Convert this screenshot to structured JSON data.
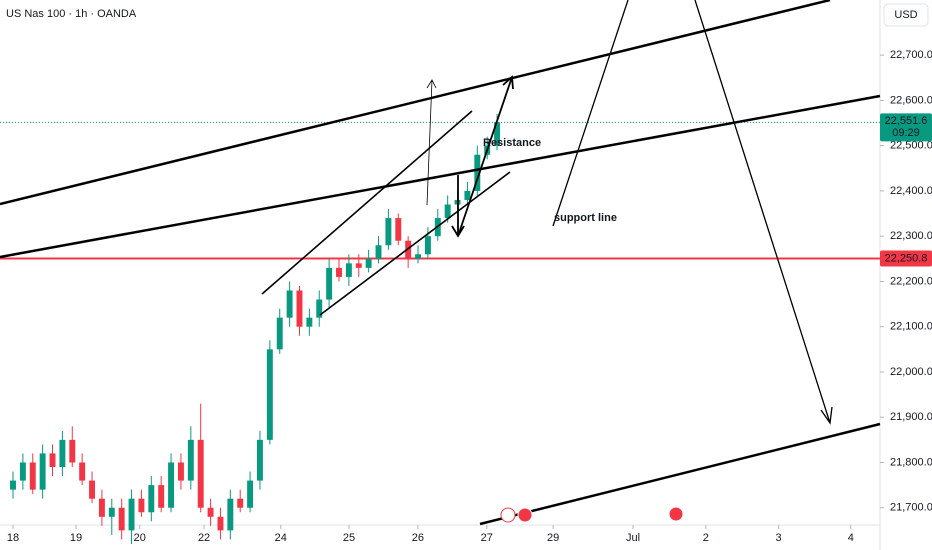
{
  "chart_data": {
    "type": "candlestick",
    "title": "US Nas 100 · 1h · OANDA",
    "currency": "USD",
    "x": [
      0,
      0.152,
      0.304,
      0.456,
      0.608,
      0.76,
      0.912,
      1.064,
      1.216,
      1.368,
      1.52,
      1.672,
      1.824,
      1.976,
      2.128,
      2.28,
      2.432,
      2.584,
      2.736,
      2.888,
      3.04,
      3.192,
      3.344,
      3.496,
      3.648,
      3.8,
      3.952,
      4.104,
      4.256,
      4.408,
      4.56,
      4.712,
      4.864,
      5.016,
      5.168,
      5.32,
      5.472,
      5.624,
      5.776,
      5.928,
      6.08,
      6.232,
      6.384,
      6.536,
      6.688,
      6.84,
      6.992,
      7.144,
      7.296,
      7.448
    ],
    "open": [
      21740,
      21760,
      21800,
      21740,
      21820,
      21790,
      21850,
      21800,
      21760,
      21720,
      21680,
      21700,
      21650,
      21720,
      21690,
      21750,
      21700,
      21800,
      21760,
      21850,
      21700,
      21680,
      21650,
      21720,
      21700,
      21760,
      21850,
      22050,
      22120,
      22180,
      22100,
      22120,
      22160,
      22230,
      22210,
      22240,
      22230,
      22250,
      22280,
      22340,
      22290,
      22250,
      22260,
      22300,
      22340,
      22370,
      22380,
      22400,
      22480,
      22500
    ],
    "high": [
      21780,
      21820,
      21820,
      21840,
      21840,
      21870,
      21880,
      21820,
      21780,
      21740,
      21720,
      21720,
      21740,
      21740,
      21770,
      21770,
      21820,
      21820,
      21880,
      21930,
      21720,
      21700,
      21740,
      21740,
      21780,
      21870,
      22070,
      22140,
      22200,
      22190,
      22140,
      22180,
      22250,
      22250,
      22260,
      22260,
      22270,
      22300,
      22360,
      22350,
      22300,
      22280,
      22320,
      22360,
      22390,
      22400,
      22420,
      22500,
      22520,
      22570
    ],
    "low": [
      21720,
      21740,
      21730,
      21720,
      21770,
      21770,
      21790,
      21750,
      21710,
      21660,
      21640,
      21630,
      21620,
      21680,
      21670,
      21690,
      21690,
      21740,
      21740,
      21690,
      21660,
      21630,
      21630,
      21690,
      21690,
      21740,
      21840,
      22040,
      22100,
      22080,
      22080,
      22100,
      22140,
      22200,
      22190,
      22210,
      22220,
      22240,
      22270,
      22280,
      22230,
      22240,
      22250,
      22290,
      22330,
      22360,
      22370,
      22390,
      22470,
      22490
    ],
    "close": [
      21760,
      21800,
      21740,
      21820,
      21790,
      21850,
      21800,
      21760,
      21720,
      21680,
      21700,
      21650,
      21720,
      21690,
      21750,
      21700,
      21800,
      21760,
      21850,
      21700,
      21680,
      21650,
      21720,
      21700,
      21760,
      21850,
      22050,
      22120,
      22180,
      22100,
      22120,
      22160,
      22230,
      22210,
      22240,
      22230,
      22250,
      22280,
      22340,
      22290,
      22250,
      22260,
      22300,
      22340,
      22370,
      22380,
      22400,
      22480,
      22500,
      22551.6
    ],
    "up_color": "#089981",
    "down_color": "#f23645",
    "xlim": [
      -0.2,
      13.34
    ],
    "xticks": [
      {
        "value": 0,
        "label": "18"
      },
      {
        "value": 0.97,
        "label": "19"
      },
      {
        "value": 1.95,
        "label": "20"
      },
      {
        "value": 2.94,
        "label": "22"
      },
      {
        "value": 4.12,
        "label": "24"
      },
      {
        "value": 5.17,
        "label": "25"
      },
      {
        "value": 6.23,
        "label": "26"
      },
      {
        "value": 7.29,
        "label": "27"
      },
      {
        "value": 8.31,
        "label": "29"
      },
      {
        "value": 9.54,
        "label": "Jul"
      },
      {
        "value": 10.66,
        "label": "2"
      },
      {
        "value": 11.78,
        "label": "3"
      },
      {
        "value": 12.89,
        "label": "4"
      }
    ],
    "ylim": [
      21600,
      22760
    ],
    "yticks": [
      {
        "value": 21700,
        "label": "21,700.0"
      },
      {
        "value": 21800,
        "label": "21,800.0"
      },
      {
        "value": 21900,
        "label": "21,900.0"
      },
      {
        "value": 22000,
        "label": "22,000.0"
      },
      {
        "value": 22100,
        "label": "22,100.0"
      },
      {
        "value": 22200,
        "label": "22,200.0"
      },
      {
        "value": 22300,
        "label": "22,300.0"
      },
      {
        "value": 22400,
        "label": "22,400.0"
      },
      {
        "value": 22500,
        "label": "22,500.0"
      },
      {
        "value": 22600,
        "label": "22,600.0"
      },
      {
        "value": 22700,
        "label": "22,700.0"
      }
    ],
    "last_price": {
      "value": 22551.6,
      "label": "22,551.6",
      "countdown": "09:29",
      "color": "#089981"
    },
    "support": {
      "value": 22250.8,
      "label": "22,250.8",
      "color": "#f23645"
    },
    "annotations": [
      {
        "text": "Resistance",
        "color": "#f57c00"
      },
      {
        "text": "support line",
        "color": "#f23645"
      }
    ]
  }
}
